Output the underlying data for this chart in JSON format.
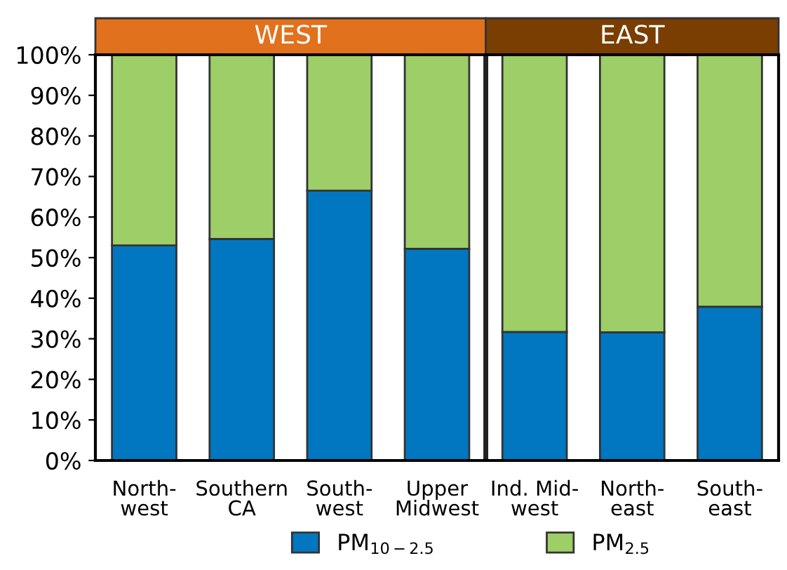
{
  "chart_data": {
    "type": "bar",
    "stacked": true,
    "categories": [
      "North-\nwest",
      "Southern\nCA",
      "South-\nwest",
      "Upper\nMidwest",
      "Ind. Mid-\nwest",
      "North-\neast",
      "South-\neast"
    ],
    "series": [
      {
        "name": "PM$_{10−2.5}$",
        "color": "#0077c0",
        "values": [
          53.0,
          54.6,
          66.5,
          52.2,
          31.7,
          31.6,
          37.9
        ]
      },
      {
        "name": "PM$_{2.5}$",
        "color": "#9dce68",
        "values": [
          47.0,
          45.4,
          33.5,
          47.8,
          68.3,
          68.4,
          62.1
        ]
      }
    ],
    "ylim": [
      0,
      100
    ],
    "yticks": [
      {
        "value": 0,
        "label": "0%"
      },
      {
        "value": 10,
        "label": "10%"
      },
      {
        "value": 20,
        "label": "20%"
      },
      {
        "value": 30,
        "label": "30%"
      },
      {
        "value": 40,
        "label": "40%"
      },
      {
        "value": 50,
        "label": "50%"
      },
      {
        "value": 60,
        "label": "60%"
      },
      {
        "value": 70,
        "label": "70%"
      },
      {
        "value": 80,
        "label": "80%"
      },
      {
        "value": 90,
        "label": "90%"
      },
      {
        "value": 100,
        "label": "100%"
      }
    ],
    "annotations": [
      "WEST",
      "EAST"
    ],
    "grid": false,
    "legend": "bottom"
  }
}
